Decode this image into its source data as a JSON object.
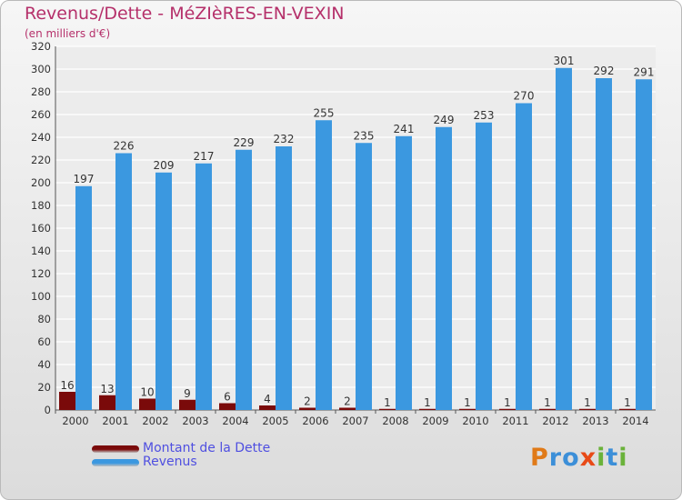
{
  "title": "Revenus/Dette - MéZIèRES-EN-VEXIN",
  "subtitle": "(en milliers d'€)",
  "chart_data": {
    "type": "bar",
    "title": "Revenus/Dette - MéZIèRES-EN-VEXIN",
    "subtitle": "(en milliers d'€)",
    "categories": [
      "2000",
      "2001",
      "2002",
      "2003",
      "2004",
      "2005",
      "2006",
      "2007",
      "2008",
      "2009",
      "2010",
      "2011",
      "2012",
      "2013",
      "2014"
    ],
    "series": [
      {
        "name": "Montant de la Dette",
        "values": [
          16,
          13,
          10,
          9,
          6,
          4,
          2,
          2,
          1,
          1,
          1,
          1,
          1,
          1,
          1
        ],
        "color": "#7a0a0a"
      },
      {
        "name": "Revenus",
        "values": [
          197,
          226,
          209,
          217,
          229,
          232,
          255,
          235,
          241,
          249,
          253,
          270,
          301,
          292,
          291
        ],
        "color": "#3b98e0"
      }
    ],
    "ylim": [
      0,
      320
    ],
    "yticks": [
      0,
      20,
      40,
      60,
      80,
      100,
      120,
      140,
      160,
      180,
      200,
      220,
      240,
      260,
      280,
      300,
      320
    ],
    "grid": true,
    "legend": "bottom-left"
  },
  "legend": [
    {
      "label": "Montant de la Dette",
      "color": "#7a0a0a"
    },
    {
      "label": "Revenus",
      "color": "#3b98e0"
    }
  ],
  "logo": {
    "text": "Proxiti",
    "letters": [
      {
        "ch": "P",
        "color": "#e07a18"
      },
      {
        "ch": "r",
        "color": "#3c8fd8"
      },
      {
        "ch": "o",
        "color": "#3c8fd8"
      },
      {
        "ch": "x",
        "color": "#e84a17"
      },
      {
        "ch": "i",
        "color": "#6ab23a"
      },
      {
        "ch": "t",
        "color": "#3c8fd8"
      },
      {
        "ch": "i",
        "color": "#6ab23a"
      }
    ]
  }
}
